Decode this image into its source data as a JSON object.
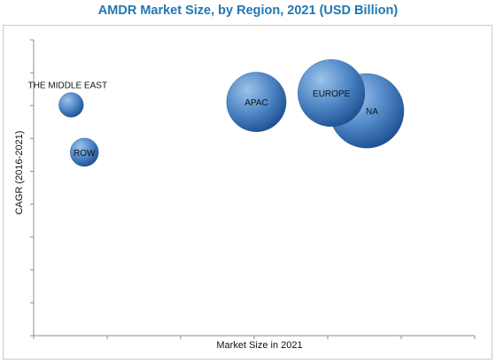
{
  "chart_data": {
    "type": "bubble",
    "title": "AMDR Market Size, by Region, 2021 (USD Billion)",
    "xlabel": "Market Size in 2021",
    "ylabel": "CAGR (2016-2021)",
    "xlim": [
      0,
      10
    ],
    "ylim": [
      0,
      10
    ],
    "grid": false,
    "legend": "none",
    "bubbles": [
      {
        "label": "NA",
        "x": 7.55,
        "y": 7.6,
        "size": 1.0
      },
      {
        "label": "EUROPE",
        "x": 6.75,
        "y": 8.2,
        "size": 0.9
      },
      {
        "label": "APAC",
        "x": 5.05,
        "y": 7.9,
        "size": 0.8
      },
      {
        "label": "THE MIDDLE EAST",
        "x": 0.85,
        "y": 7.8,
        "size": 0.33
      },
      {
        "label": "ROW",
        "x": 1.15,
        "y": 6.2,
        "size": 0.38
      }
    ],
    "colors": {
      "title": "#1f77b4",
      "bubble_light": "#9cc3ea",
      "bubble_mid": "#4f86c6",
      "bubble_dark": "#1d4f8f"
    }
  }
}
